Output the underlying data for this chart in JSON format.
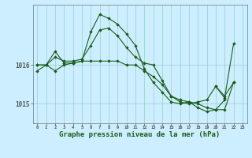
{
  "background_color": "#cceeff",
  "grid_color": "#99cccc",
  "line_color": "#1a5c1a",
  "marker_color": "#1a5c1a",
  "xlabel": "Graphe pression niveau de la mer (hPa)",
  "xlabel_fontsize": 6.5,
  "ylabel_ticks": [
    1015,
    1016
  ],
  "xlim": [
    -0.5,
    23.5
  ],
  "ylim": [
    1014.55,
    1017.55
  ],
  "xtick_labels": [
    "0",
    "1",
    "2",
    "3",
    "4",
    "5",
    "6",
    "7",
    "8",
    "9",
    "10",
    "11",
    "12",
    "13",
    "14",
    "15",
    "16",
    "17",
    "18",
    "19",
    "20",
    "21",
    "22",
    "23"
  ],
  "series": [
    [
      1015.85,
      1016.0,
      1016.35,
      1016.05,
      1016.05,
      1016.1,
      1016.85,
      1017.3,
      1017.2,
      1017.05,
      1016.8,
      1016.5,
      1015.9,
      1015.55,
      1015.3,
      1015.05,
      1015.0,
      1015.05,
      1014.9,
      1014.8,
      1014.85,
      1015.1,
      null,
      null
    ],
    [
      1016.0,
      1016.0,
      1016.2,
      1016.1,
      1016.1,
      1016.15,
      1016.5,
      1016.9,
      1016.95,
      1016.75,
      1016.45,
      1016.2,
      1016.05,
      1016.0,
      1015.6,
      1015.2,
      1015.05,
      1015.0,
      1015.05,
      1015.1,
      1015.45,
      1015.2,
      1015.55,
      null
    ],
    [
      1016.0,
      1016.0,
      1015.85,
      1016.0,
      1016.05,
      1016.1,
      1016.1,
      1016.1,
      1016.1,
      1016.1,
      1016.0,
      1016.0,
      1015.85,
      1015.7,
      1015.5,
      1015.2,
      1015.1,
      1015.05,
      1015.0,
      1014.9,
      1014.85,
      1014.85,
      1015.55,
      null
    ],
    [
      null,
      null,
      null,
      null,
      null,
      null,
      null,
      null,
      null,
      null,
      null,
      null,
      null,
      null,
      null,
      null,
      null,
      null,
      null,
      null,
      1015.45,
      1015.15,
      1016.55,
      null
    ]
  ]
}
